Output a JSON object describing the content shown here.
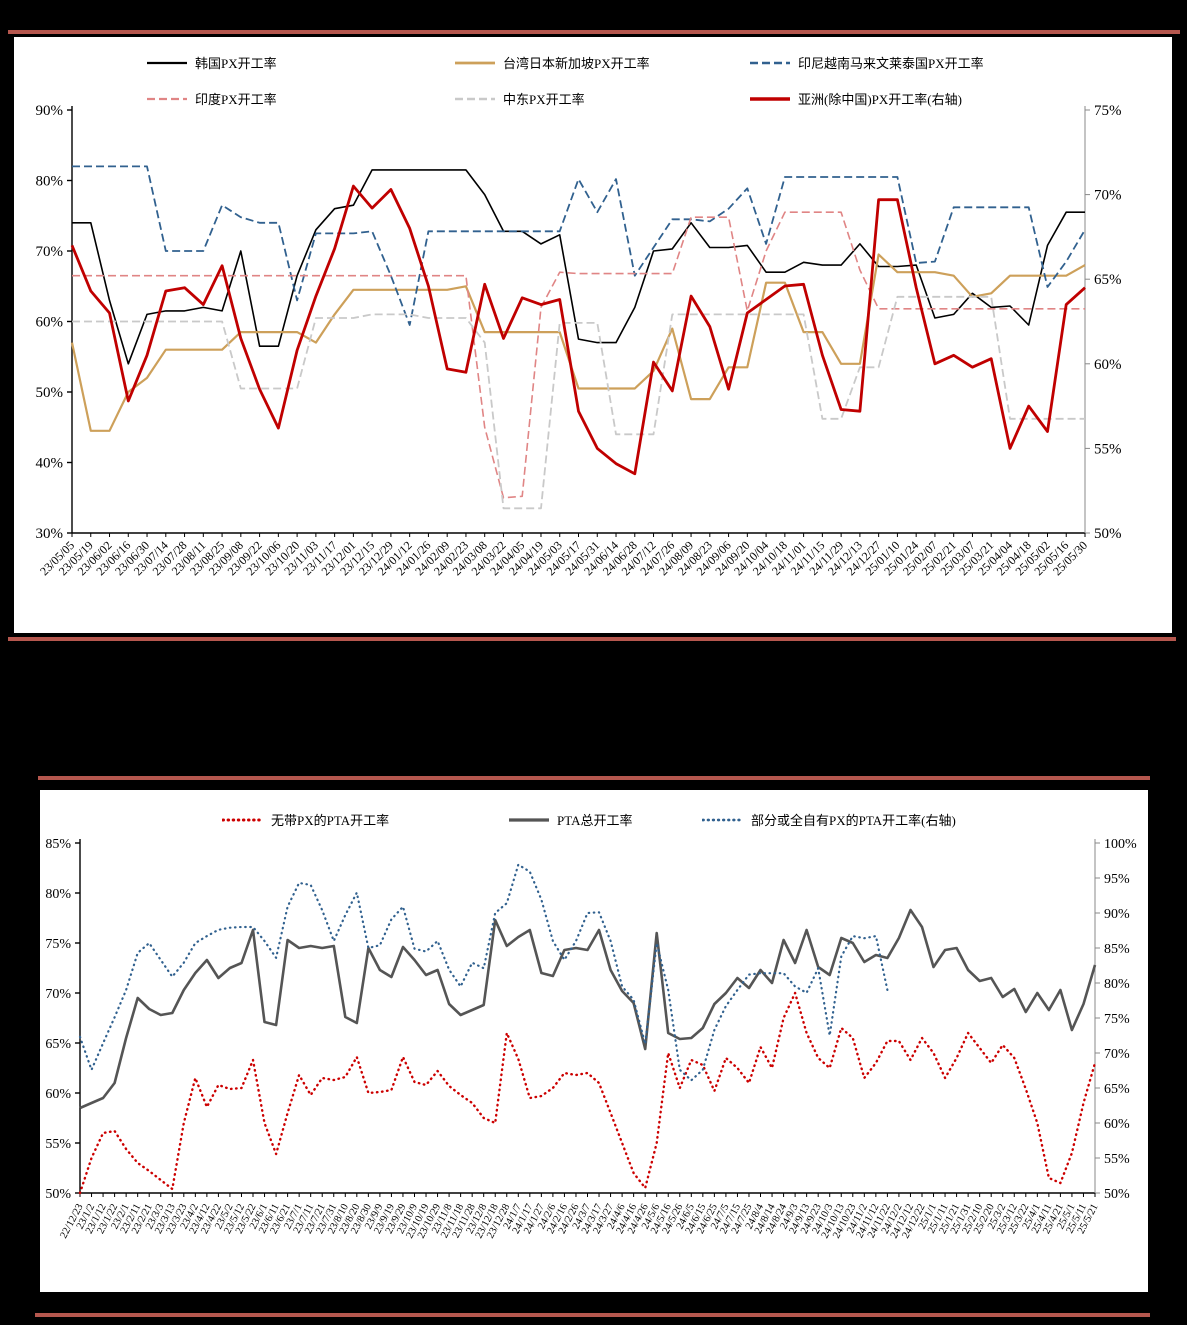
{
  "page": {
    "background": "#000000",
    "separator_color": "#B5574E"
  },
  "chart_data": [
    {
      "type": "line",
      "title": "",
      "legend_position": "top",
      "grid": false,
      "left_axis": {
        "min": 30,
        "max": 90,
        "step": 10,
        "format": "%"
      },
      "right_axis": {
        "min": 50,
        "max": 75,
        "step": 5,
        "format": "%"
      },
      "categories": [
        "23/05/05",
        "23/05/19",
        "23/06/02",
        "23/06/16",
        "23/06/30",
        "23/07/14",
        "23/07/28",
        "23/08/11",
        "23/08/25",
        "23/09/08",
        "23/09/22",
        "23/10/06",
        "23/10/20",
        "23/11/03",
        "23/11/17",
        "23/12/01",
        "23/12/15",
        "23/12/29",
        "24/01/12",
        "24/01/26",
        "24/02/09",
        "24/02/23",
        "24/03/08",
        "24/03/22",
        "24/04/05",
        "24/04/19",
        "24/05/03",
        "24/05/17",
        "24/05/31",
        "24/06/14",
        "24/06/28",
        "24/07/12",
        "24/07/26",
        "24/08/09",
        "24/08/23",
        "24/09/06",
        "24/09/20",
        "24/10/04",
        "24/10/18",
        "24/11/01",
        "24/11/15",
        "24/11/29",
        "24/12/13",
        "24/12/27",
        "25/01/10",
        "25/01/24",
        "25/02/07",
        "25/02/21",
        "25/03/07",
        "25/03/21",
        "25/04/04",
        "25/04/18",
        "25/05/02",
        "25/05/16",
        "25/05/30"
      ],
      "series": [
        {
          "name": "韩国PX开工率",
          "color": "#000000",
          "style": "solid",
          "width": 1.6,
          "axis": "left",
          "values": [
            74,
            74,
            63,
            54,
            61,
            61.5,
            61.5,
            62,
            61.5,
            70,
            56.5,
            56.5,
            66.5,
            73,
            76,
            76.5,
            81.5,
            81.5,
            81.5,
            81.5,
            81.5,
            81.5,
            78,
            72.8,
            72.8,
            71,
            72.3,
            57.5,
            57,
            57,
            62,
            70,
            70.3,
            74,
            70.5,
            70.5,
            70.8,
            67,
            67,
            68.4,
            68,
            68,
            71,
            67.8,
            67.8,
            68,
            60.5,
            61,
            64,
            62,
            62.2,
            59.5,
            70.8,
            75.5,
            75.5
          ]
        },
        {
          "name": "台湾日本新加坡PX开工率",
          "color": "#CDA05A",
          "style": "solid",
          "width": 2.2,
          "axis": "left",
          "values": [
            57,
            44.5,
            44.5,
            50,
            52,
            56,
            56,
            56,
            56,
            58.5,
            58.5,
            58.5,
            58.5,
            57,
            61,
            64.5,
            64.5,
            64.5,
            64.5,
            64.5,
            64.5,
            65,
            58.5,
            58.5,
            58.5,
            58.5,
            58.5,
            50.5,
            50.5,
            50.5,
            50.5,
            53,
            59,
            49,
            49,
            53.5,
            53.5,
            65.5,
            65.5,
            58.5,
            58.5,
            54,
            54,
            69.5,
            67,
            67,
            67,
            66.5,
            63.5,
            64,
            66.5,
            66.5,
            66.5,
            66.5,
            68
          ]
        },
        {
          "name": "印尼越南马来文莱泰国PX开工率",
          "color": "#31618F",
          "style": "dashed",
          "width": 1.8,
          "axis": "left",
          "values": [
            82,
            82,
            82,
            82,
            82,
            70,
            70,
            70,
            76.5,
            74.8,
            74,
            74,
            63,
            72.5,
            72.5,
            72.5,
            72.8,
            66.5,
            59.5,
            72.8,
            72.8,
            72.8,
            72.8,
            72.8,
            72.8,
            72.8,
            72.8,
            80.2,
            75.5,
            80.2,
            66.5,
            70.5,
            74.5,
            74.5,
            74.2,
            76,
            78.9,
            71,
            80.5,
            80.5,
            80.5,
            80.5,
            80.5,
            80.5,
            80.5,
            68.3,
            68.5,
            76.2,
            76.2,
            76.2,
            76.2,
            76.2,
            64.9,
            68.5,
            73
          ]
        },
        {
          "name": "印度PX开工率",
          "color": "#E08585",
          "style": "dashed",
          "width": 1.6,
          "axis": "left",
          "values": [
            66.5,
            66.5,
            66.5,
            66.5,
            66.5,
            66.5,
            66.5,
            66.5,
            66.5,
            66.5,
            66.5,
            66.5,
            66.5,
            66.5,
            66.5,
            66.5,
            66.5,
            66.5,
            66.5,
            66.5,
            66.5,
            66.5,
            45,
            35,
            35.2,
            62,
            67,
            66.8,
            66.8,
            66.8,
            66.8,
            66.8,
            66.8,
            74.8,
            74.8,
            74.8,
            61.5,
            70,
            75.5,
            75.5,
            75.5,
            75.5,
            67.3,
            61.8,
            61.8,
            61.8,
            61.8,
            61.8,
            61.8,
            61.8,
            61.8,
            61.8,
            61.8,
            61.8,
            61.8
          ]
        },
        {
          "name": "中东PX开工率",
          "color": "#C9C9C9",
          "style": "dashed",
          "width": 1.8,
          "axis": "left",
          "values": [
            60,
            60,
            60,
            60,
            60,
            60,
            60,
            60,
            60,
            50.5,
            50.5,
            50.5,
            50.5,
            60.5,
            60.5,
            60.5,
            61,
            61,
            61,
            60.5,
            60.5,
            60.5,
            57,
            33.5,
            33.5,
            33.5,
            59.8,
            59.8,
            59.8,
            44,
            44,
            44,
            61,
            61,
            61,
            61,
            61,
            61,
            61,
            61,
            46.2,
            46.2,
            53.5,
            53.5,
            63.5,
            63.5,
            63.5,
            63.5,
            63.5,
            63.5,
            46.2,
            46.2,
            46.2,
            46.2,
            46.2
          ]
        },
        {
          "name": "亚洲(除中国)PX开工率(右轴)",
          "color": "#C00000",
          "style": "solid",
          "width": 2.8,
          "axis": "right",
          "values": [
            67,
            64.3,
            63,
            57.8,
            60.5,
            64.3,
            64.5,
            63.5,
            65.8,
            61.5,
            58.5,
            56.2,
            60.8,
            64,
            66.8,
            70.5,
            69.2,
            70.3,
            68,
            64.6,
            59.7,
            59.5,
            64.7,
            61.5,
            63.9,
            63.5,
            63.8,
            57.2,
            55,
            54.1,
            53.5,
            60.1,
            58.4,
            64,
            62.2,
            58.5,
            63,
            63.8,
            64.6,
            64.7,
            60.5,
            57.3,
            57.2,
            69.7,
            69.7,
            64.5,
            60,
            60.5,
            59.8,
            60.3,
            55,
            57.5,
            56,
            63.5,
            64.5
          ]
        }
      ]
    },
    {
      "type": "line",
      "title": "",
      "legend_position": "top",
      "grid": false,
      "left_axis": {
        "min": 50,
        "max": 85,
        "step": 5,
        "format": "%"
      },
      "right_axis": {
        "min": 50,
        "max": 100,
        "step": 5,
        "format": "%"
      },
      "categories": [
        "22/12/23",
        "23/1/2",
        "23/1/12",
        "23/1/22",
        "23/2/1",
        "23/2/11",
        "23/2/21",
        "23/3/3",
        "23/3/13",
        "23/3/23",
        "23/4/2",
        "23/4/12",
        "23/4/22",
        "23/5/2",
        "23/5/12",
        "23/5/22",
        "23/6/1",
        "23/6/11",
        "23/6/21",
        "23/7/1",
        "23/7/11",
        "23/7/21",
        "23/7/31",
        "23/8/10",
        "23/8/20",
        "23/8/30",
        "23/9/9",
        "23/9/19",
        "23/9/29",
        "23/10/9",
        "23/10/19",
        "23/10/29",
        "23/11/8",
        "23/11/18",
        "23/11/28",
        "23/12/8",
        "23/12/18",
        "23/12/28",
        "24/1/7",
        "24/1/17",
        "24/1/27",
        "24/2/6",
        "24/2/16",
        "24/2/26",
        "24/3/7",
        "24/3/17",
        "24/3/27",
        "24/4/6",
        "24/4/16",
        "24/4/26",
        "24/5/6",
        "24/5/16",
        "24/5/26",
        "24/6/5",
        "24/6/15",
        "24/6/25",
        "24/7/5",
        "24/7/15",
        "24/7/25",
        "24/8/4",
        "24/8/14",
        "24/8/24",
        "24/9/3",
        "24/9/13",
        "24/9/23",
        "24/10/3",
        "24/10/13",
        "24/10/23",
        "24/11/2",
        "24/11/12",
        "24/11/22",
        "24/12/2",
        "24/12/12",
        "24/12/22",
        "25/1/1",
        "25/1/11",
        "25/1/21",
        "25/1/31",
        "25/2/10",
        "25/2/20",
        "25/3/2",
        "25/3/12",
        "25/3/22",
        "25/4/1",
        "25/4/11",
        "25/4/21",
        "25/5/1",
        "25/5/11",
        "25/5/21"
      ],
      "series": [
        {
          "name": "无带PX的PTA开工率",
          "color": "#CC0000",
          "style": "dotted",
          "width": 2.4,
          "axis": "left",
          "values": [
            50,
            53.5,
            56,
            56.2,
            54.4,
            53,
            52.2,
            51.3,
            50.4,
            57,
            61.5,
            58.6,
            60.8,
            60.4,
            60.5,
            63.3,
            57,
            53.9,
            58,
            61.8,
            59.8,
            61.5,
            61.3,
            61.6,
            63.6,
            60,
            60.1,
            60.3,
            63.6,
            61.1,
            60.8,
            62.2,
            60.7,
            59.8,
            59,
            57.5,
            57,
            66,
            63.4,
            59.5,
            59.7,
            60.5,
            62,
            61.8,
            62,
            61,
            58,
            55,
            52,
            50.5,
            55,
            64,
            60.5,
            63.3,
            62.8,
            60.2,
            63.5,
            62.5,
            61,
            64.6,
            62.5,
            67.5,
            70,
            66,
            63.5,
            62.5,
            66.5,
            65.5,
            61.5,
            63,
            65.2,
            65.2,
            63.3,
            65.5,
            64,
            61.5,
            63.5,
            66,
            64.5,
            63,
            64.8,
            63.5,
            60.4,
            57,
            51.5,
            51,
            54,
            59,
            63
          ]
        },
        {
          "name": "PTA总开工率",
          "color": "#555555",
          "style": "solid",
          "width": 2.6,
          "axis": "left",
          "values": [
            58.5,
            59,
            59.5,
            61,
            65.5,
            69.5,
            68.4,
            67.8,
            68,
            70.3,
            72,
            73.3,
            71.5,
            72.5,
            73,
            76.3,
            67.1,
            66.8,
            75.3,
            74.5,
            74.7,
            74.5,
            74.7,
            67.6,
            67,
            74.5,
            72.3,
            71.6,
            74.6,
            73.3,
            71.8,
            72.3,
            68.9,
            67.8,
            68.3,
            68.8,
            77.3,
            74.7,
            75.6,
            76.3,
            72,
            71.7,
            74.3,
            74.5,
            74.3,
            76.3,
            72.3,
            70.2,
            69,
            64.4,
            76,
            66,
            65.4,
            65.5,
            66.5,
            68.9,
            70,
            71.5,
            70.5,
            72.3,
            71,
            75.3,
            73,
            76.3,
            72.6,
            71.8,
            75.5,
            75,
            73.1,
            73.8,
            73.5,
            75.5,
            78.3,
            76.6,
            72.6,
            74.3,
            74.5,
            72.3,
            71.2,
            71.5,
            69.6,
            70.4,
            68.1,
            70,
            68.3,
            70.3,
            66.3,
            68.9,
            72.8
          ]
        },
        {
          "name": "部分或全自有PX的PTA开工率(右轴)",
          "color": "#31618F",
          "style": "dotted",
          "width": 2.2,
          "axis": "right",
          "values": [
            72.3,
            67.6,
            71.4,
            75.1,
            79,
            84.3,
            85.7,
            83.3,
            80.9,
            82.9,
            85.7,
            86.7,
            87.6,
            87.9,
            88,
            88,
            86,
            83.6,
            90.9,
            94.3,
            94,
            90.4,
            86,
            89.7,
            92.9,
            85,
            85.4,
            89.1,
            90.9,
            84.9,
            84.5,
            86,
            81.9,
            79.5,
            82.9,
            82.1,
            90,
            91.4,
            96.9,
            95.9,
            91.9,
            86,
            83.3,
            86,
            90,
            90.1,
            86,
            79.5,
            77.6,
            71.3,
            85.7,
            79,
            67.6,
            66.1,
            67.6,
            73.3,
            76.7,
            79,
            81.2,
            81.4,
            81.4,
            81.4,
            79.5,
            78.6,
            82.1,
            72.5,
            83.8,
            86.7,
            86.4,
            86.7,
            79,
            null,
            null,
            null,
            null,
            null,
            null,
            null,
            null,
            null,
            null,
            null,
            null,
            null,
            null,
            null,
            null,
            null,
            null
          ]
        }
      ]
    }
  ]
}
